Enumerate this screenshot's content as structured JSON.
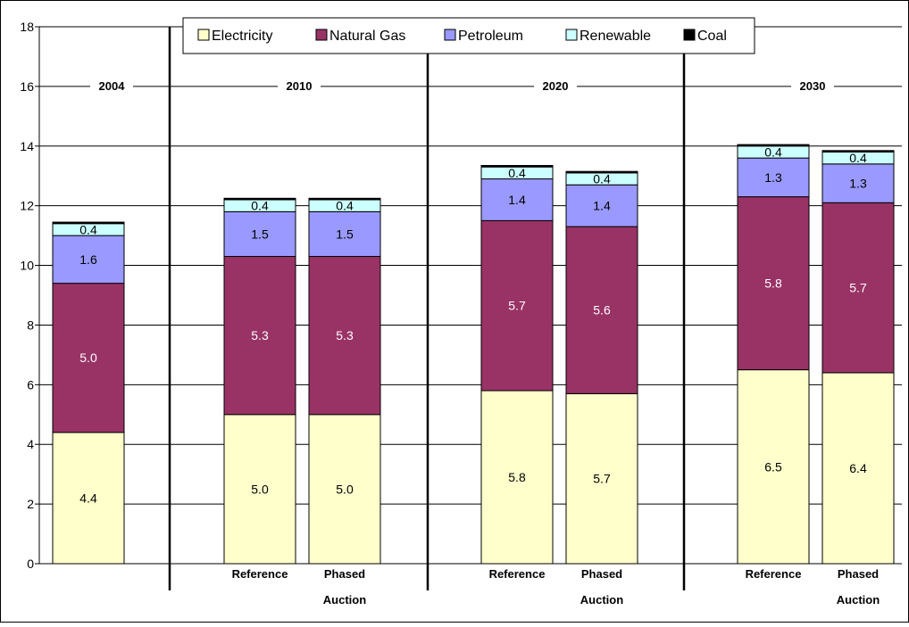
{
  "chart_data": {
    "type": "bar",
    "stacked": true,
    "ylim": [
      0,
      18
    ],
    "yticks": [
      "0",
      "2",
      "4",
      "6",
      "8",
      "10",
      "12",
      "14",
      "16",
      "18"
    ],
    "grid": true,
    "legend_position": "top",
    "series": [
      {
        "name": "Electricity",
        "color": "#FFFFCC",
        "values": [
          4.4,
          5.0,
          5.0,
          5.8,
          5.7,
          6.5,
          6.4
        ],
        "labels": [
          "4.4",
          "5.0",
          "5.0",
          "5.8",
          "5.7",
          "6.5",
          "6.4"
        ]
      },
      {
        "name": "Natural Gas",
        "color": "#993366",
        "values": [
          5.0,
          5.3,
          5.3,
          5.7,
          5.6,
          5.8,
          5.7
        ],
        "labels": [
          "5.0",
          "5.3",
          "5.3",
          "5.7",
          "5.6",
          "5.8",
          "5.7"
        ]
      },
      {
        "name": "Petroleum",
        "color": "#9999FF",
        "values": [
          1.6,
          1.5,
          1.5,
          1.4,
          1.4,
          1.3,
          1.3
        ],
        "labels": [
          "1.6",
          "1.5",
          "1.5",
          "1.4",
          "1.4",
          "1.3",
          "1.3"
        ]
      },
      {
        "name": "Renewable",
        "color": "#CCFFFF",
        "values": [
          0.4,
          0.4,
          0.4,
          0.4,
          0.4,
          0.4,
          0.4
        ],
        "labels": [
          "0.4",
          "0.4",
          "0.4",
          "0.4",
          "0.4",
          "0.4",
          "0.4"
        ]
      },
      {
        "name": "Coal",
        "color": "#000000",
        "values": [
          0.05,
          0.05,
          0.05,
          0.05,
          0.05,
          0.05,
          0.05
        ],
        "labels": []
      }
    ],
    "bars": [
      {
        "line1": "",
        "line2": ""
      },
      {
        "line1": "Reference",
        "line2": ""
      },
      {
        "line1": "Phased",
        "line2": "Auction"
      },
      {
        "line1": "Reference",
        "line2": ""
      },
      {
        "line1": "Phased",
        "line2": "Auction"
      },
      {
        "line1": "Reference",
        "line2": ""
      },
      {
        "line1": "Phased",
        "line2": "Auction"
      }
    ],
    "groups": [
      "2004",
      "2010",
      "2020",
      "2030"
    ]
  }
}
